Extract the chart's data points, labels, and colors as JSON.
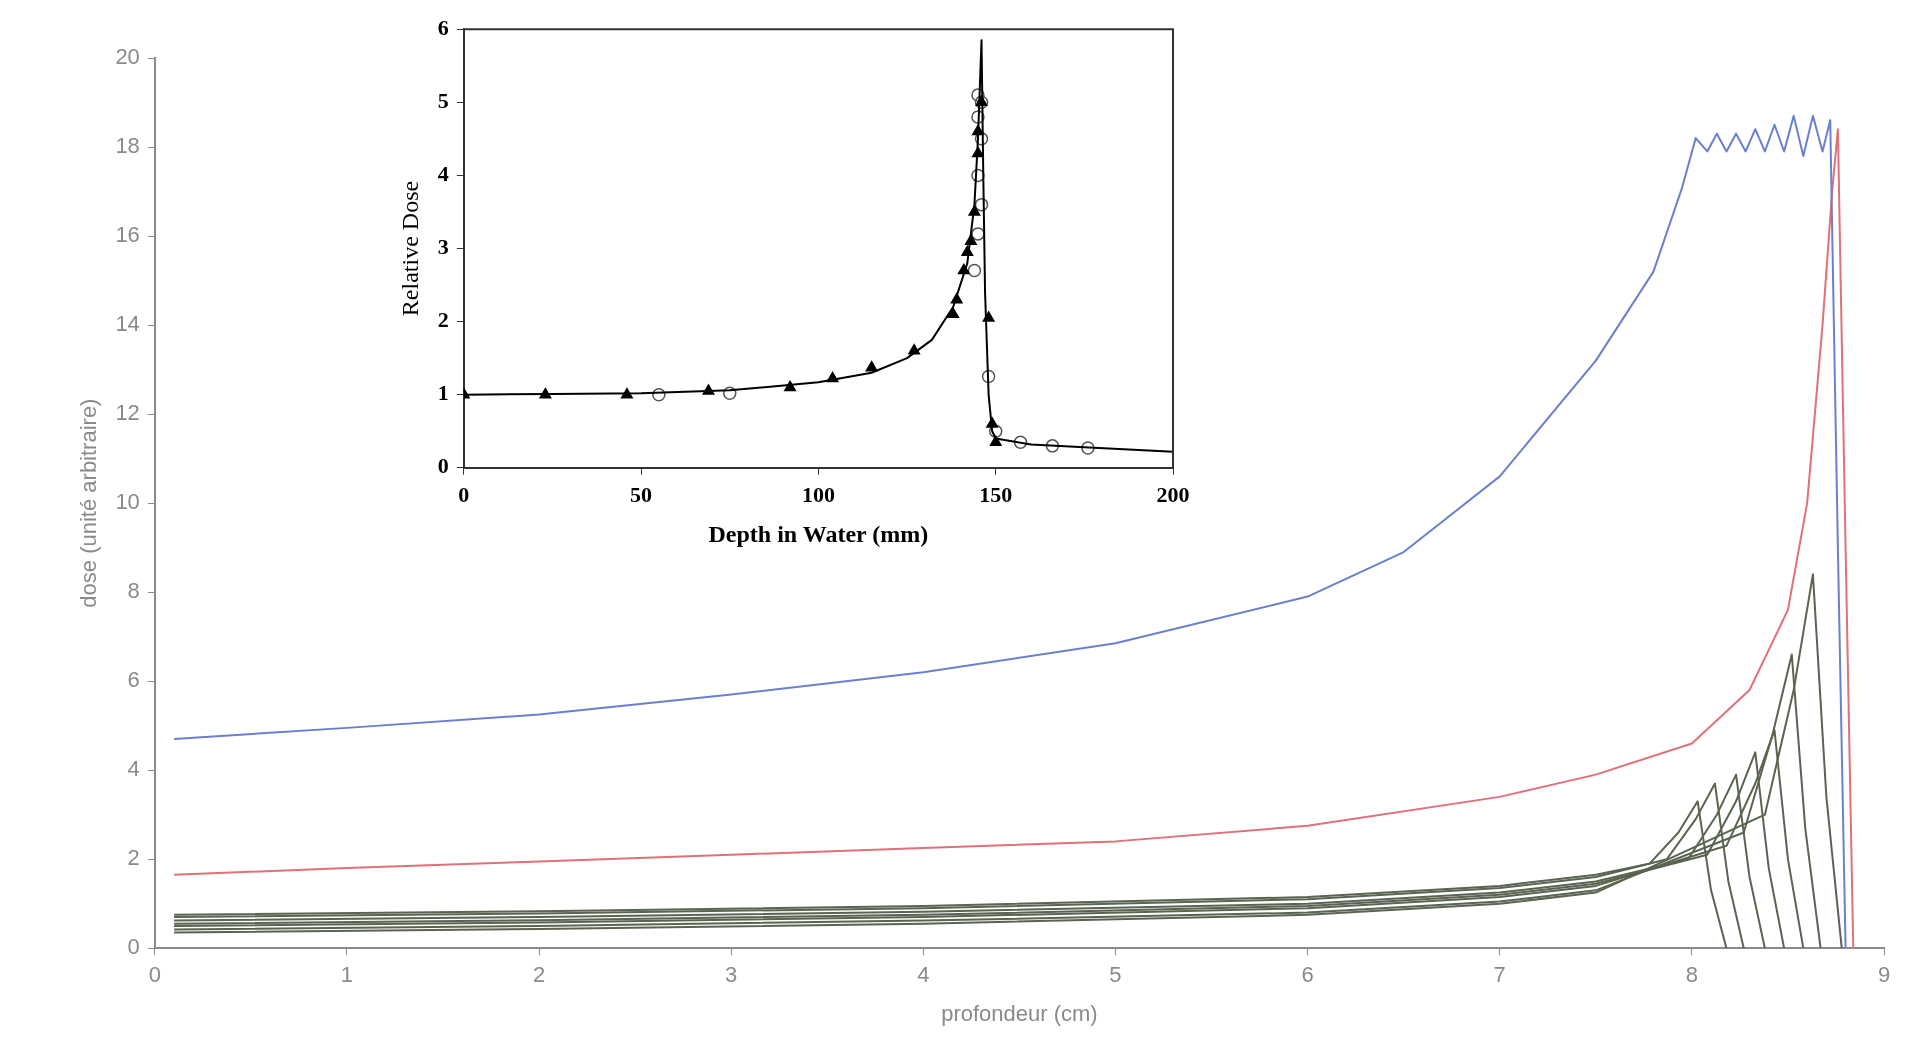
{
  "chart_data": [
    {
      "type": "line",
      "xlabel": "profondeur (cm)",
      "ylabel": "dose (unité arbitraire)",
      "xlim": [
        0,
        9
      ],
      "xticks": [
        0,
        1,
        2,
        3,
        4,
        5,
        6,
        7,
        8,
        9
      ],
      "ylim": [
        0,
        20
      ],
      "yticks": [
        0,
        2,
        4,
        6,
        8,
        10,
        12,
        14,
        16,
        18,
        20
      ],
      "grid": false,
      "legend": false,
      "marker": "none",
      "series": [
        {
          "color": "#6a7fd0",
          "x": [
            0.1,
            1,
            2,
            3,
            4,
            5,
            6,
            6.5,
            7,
            7.5,
            7.8,
            7.95,
            8.02,
            8.08,
            8.13,
            8.18,
            8.23,
            8.28,
            8.33,
            8.38,
            8.43,
            8.48,
            8.53,
            8.58,
            8.63,
            8.68,
            8.72,
            8.76,
            8.8
          ],
          "values": [
            4.7,
            4.95,
            5.25,
            5.7,
            6.2,
            6.85,
            7.9,
            8.9,
            10.6,
            13.2,
            15.2,
            17.1,
            18.2,
            17.9,
            18.3,
            17.9,
            18.3,
            17.9,
            18.4,
            17.9,
            18.5,
            17.9,
            18.7,
            17.8,
            18.7,
            17.9,
            18.6,
            9,
            0
          ]
        },
        {
          "color": "#e0707a",
          "x": [
            0.1,
            1,
            2,
            3,
            4,
            5,
            6,
            7,
            7.5,
            8,
            8.3,
            8.5,
            8.6,
            8.68,
            8.73,
            8.76,
            8.8,
            8.84
          ],
          "values": [
            1.65,
            1.8,
            1.95,
            2.1,
            2.25,
            2.4,
            2.75,
            3.4,
            3.9,
            4.6,
            5.8,
            7.6,
            10,
            14,
            17,
            18.4,
            9,
            0
          ]
        },
        {
          "color": "#5a6450",
          "x": [
            0.1,
            2,
            4,
            6,
            7,
            7.5,
            7.78,
            7.93,
            8.03,
            8.1,
            8.18
          ],
          "values": [
            0.75,
            0.83,
            0.95,
            1.15,
            1.4,
            1.65,
            1.9,
            2.6,
            3.3,
            1.3,
            0
          ]
        },
        {
          "color": "#5a6450",
          "x": [
            0.1,
            2,
            4,
            6,
            7,
            7.5,
            7.87,
            8.02,
            8.12,
            8.19,
            8.27
          ],
          "values": [
            0.7,
            0.78,
            0.9,
            1.1,
            1.35,
            1.6,
            2,
            2.9,
            3.7,
            1.5,
            0
          ]
        },
        {
          "color": "#5a6450",
          "x": [
            0.1,
            2,
            4,
            6,
            7,
            7.5,
            7.98,
            8.13,
            8.23,
            8.3,
            8.38
          ],
          "values": [
            0.62,
            0.7,
            0.82,
            1,
            1.25,
            1.5,
            2,
            3,
            3.9,
            1.6,
            0
          ]
        },
        {
          "color": "#5a6450",
          "x": [
            0.1,
            2,
            4,
            6,
            7,
            7.5,
            8.08,
            8.23,
            8.33,
            8.4,
            8.48
          ],
          "values": [
            0.55,
            0.63,
            0.75,
            0.95,
            1.2,
            1.45,
            2.1,
            3.3,
            4.4,
            1.8,
            0
          ]
        },
        {
          "color": "#5a6450",
          "x": [
            0.1,
            2,
            4,
            6,
            7,
            7.5,
            8.18,
            8.33,
            8.43,
            8.5,
            8.58
          ],
          "values": [
            0.5,
            0.58,
            0.7,
            0.9,
            1.15,
            1.4,
            2.3,
            3.7,
            4.9,
            2,
            0
          ]
        },
        {
          "color": "#5a6450",
          "x": [
            0.1,
            2,
            4,
            6,
            7,
            7.5,
            8.27,
            8.42,
            8.52,
            8.59,
            8.67
          ],
          "values": [
            0.42,
            0.5,
            0.62,
            0.8,
            1.05,
            1.3,
            2.6,
            4.8,
            6.6,
            2.7,
            0
          ]
        },
        {
          "color": "#5a6450",
          "x": [
            0.1,
            2,
            4,
            6,
            7,
            7.5,
            8.38,
            8.53,
            8.63,
            8.7,
            8.78
          ],
          "values": [
            0.35,
            0.43,
            0.55,
            0.75,
            1,
            1.25,
            3,
            5.8,
            8.4,
            3.4,
            0
          ]
        }
      ]
    },
    {
      "type": "line",
      "xlabel": "Depth in Water (mm)",
      "ylabel": "Relative Dose",
      "xlim": [
        0,
        200
      ],
      "xticks": [
        0,
        50,
        100,
        150,
        200
      ],
      "ylim": [
        0,
        6
      ],
      "yticks": [
        0,
        1,
        2,
        3,
        4,
        5,
        6
      ],
      "grid": false,
      "legend": false,
      "series": [
        {
          "type": "line",
          "marker": "none",
          "color": "#000000",
          "x": [
            0,
            25,
            50,
            75,
            100,
            115,
            125,
            132,
            138,
            142,
            144,
            145,
            146,
            146.5,
            147,
            148,
            149,
            150,
            160,
            175,
            200
          ],
          "values": [
            1,
            1.01,
            1.02,
            1.06,
            1.17,
            1.3,
            1.5,
            1.75,
            2.2,
            2.8,
            3.6,
            4.5,
            5.85,
            4,
            2.4,
            1,
            0.5,
            0.4,
            0.32,
            0.28,
            0.22
          ]
        },
        {
          "type": "scatter",
          "marker": "triangle",
          "color": "#000000",
          "x": [
            0,
            23,
            46,
            69,
            92,
            104,
            115,
            127,
            138,
            139,
            141,
            142,
            143,
            144,
            145,
            145,
            146,
            148,
            149,
            150
          ],
          "values": [
            1,
            1,
            1,
            1.05,
            1.1,
            1.22,
            1.37,
            1.6,
            2.1,
            2.3,
            2.7,
            2.95,
            3.1,
            3.5,
            4.3,
            4.6,
            5,
            2.05,
            0.6,
            0.35
          ]
        },
        {
          "type": "scatter",
          "marker": "circle",
          "color": "#555555",
          "x": [
            55,
            75,
            144,
            145,
            146,
            145,
            146,
            145,
            146,
            145,
            148,
            150,
            157,
            166,
            176
          ],
          "values": [
            1,
            1.02,
            2.7,
            3.2,
            3.6,
            4,
            4.5,
            4.8,
            5,
            5.1,
            1.25,
            0.5,
            0.35,
            0.3,
            0.27
          ]
        }
      ]
    }
  ]
}
